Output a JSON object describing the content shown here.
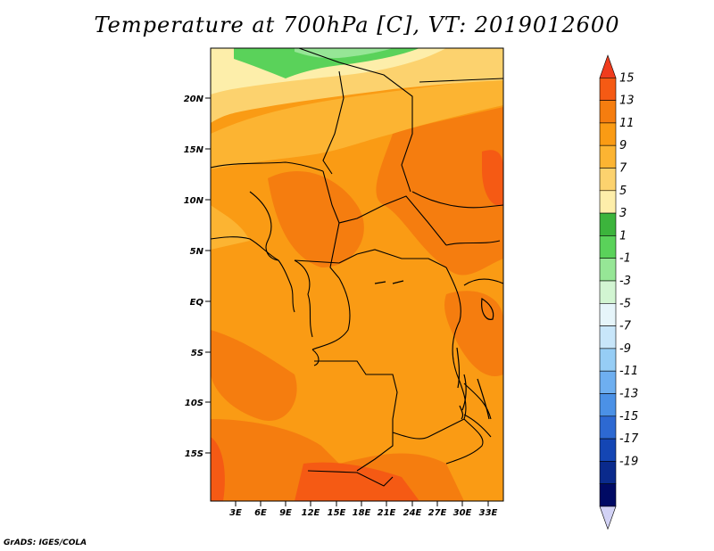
{
  "title": "Temperature at 700hPa [C], VT: 2019012600",
  "credit": "GrADS: IGES/COLA",
  "map": {
    "lat_labels": [
      "20N",
      "15N",
      "10N",
      "5N",
      "EQ",
      "5S",
      "10S",
      "15S"
    ],
    "lon_labels": [
      "3E",
      "6E",
      "9E",
      "12E",
      "15E",
      "18E",
      "21E",
      "24E",
      "27E",
      "30E",
      "33E"
    ]
  },
  "colorbar": {
    "labels": [
      "15",
      "13",
      "11",
      "9",
      "7",
      "5",
      "3",
      "1",
      "-1",
      "-3",
      "-5",
      "-7",
      "-9",
      "-11",
      "-13",
      "-15",
      "-17",
      "-19"
    ],
    "colors": [
      "#f03c1e",
      "#f55a14",
      "#f57d0f",
      "#fa9b14",
      "#fcb432",
      "#fcd26e",
      "#fdeeaa",
      "#3cb43c",
      "#5ad25a",
      "#96e696",
      "#d2f5d2",
      "#e6f5fa",
      "#c8e6fa",
      "#96cdf5",
      "#6eaff0",
      "#4b91e6",
      "#2d69d2",
      "#1446b4",
      "#0a2a8c",
      "#000a64",
      "#d2d2f5"
    ]
  }
}
